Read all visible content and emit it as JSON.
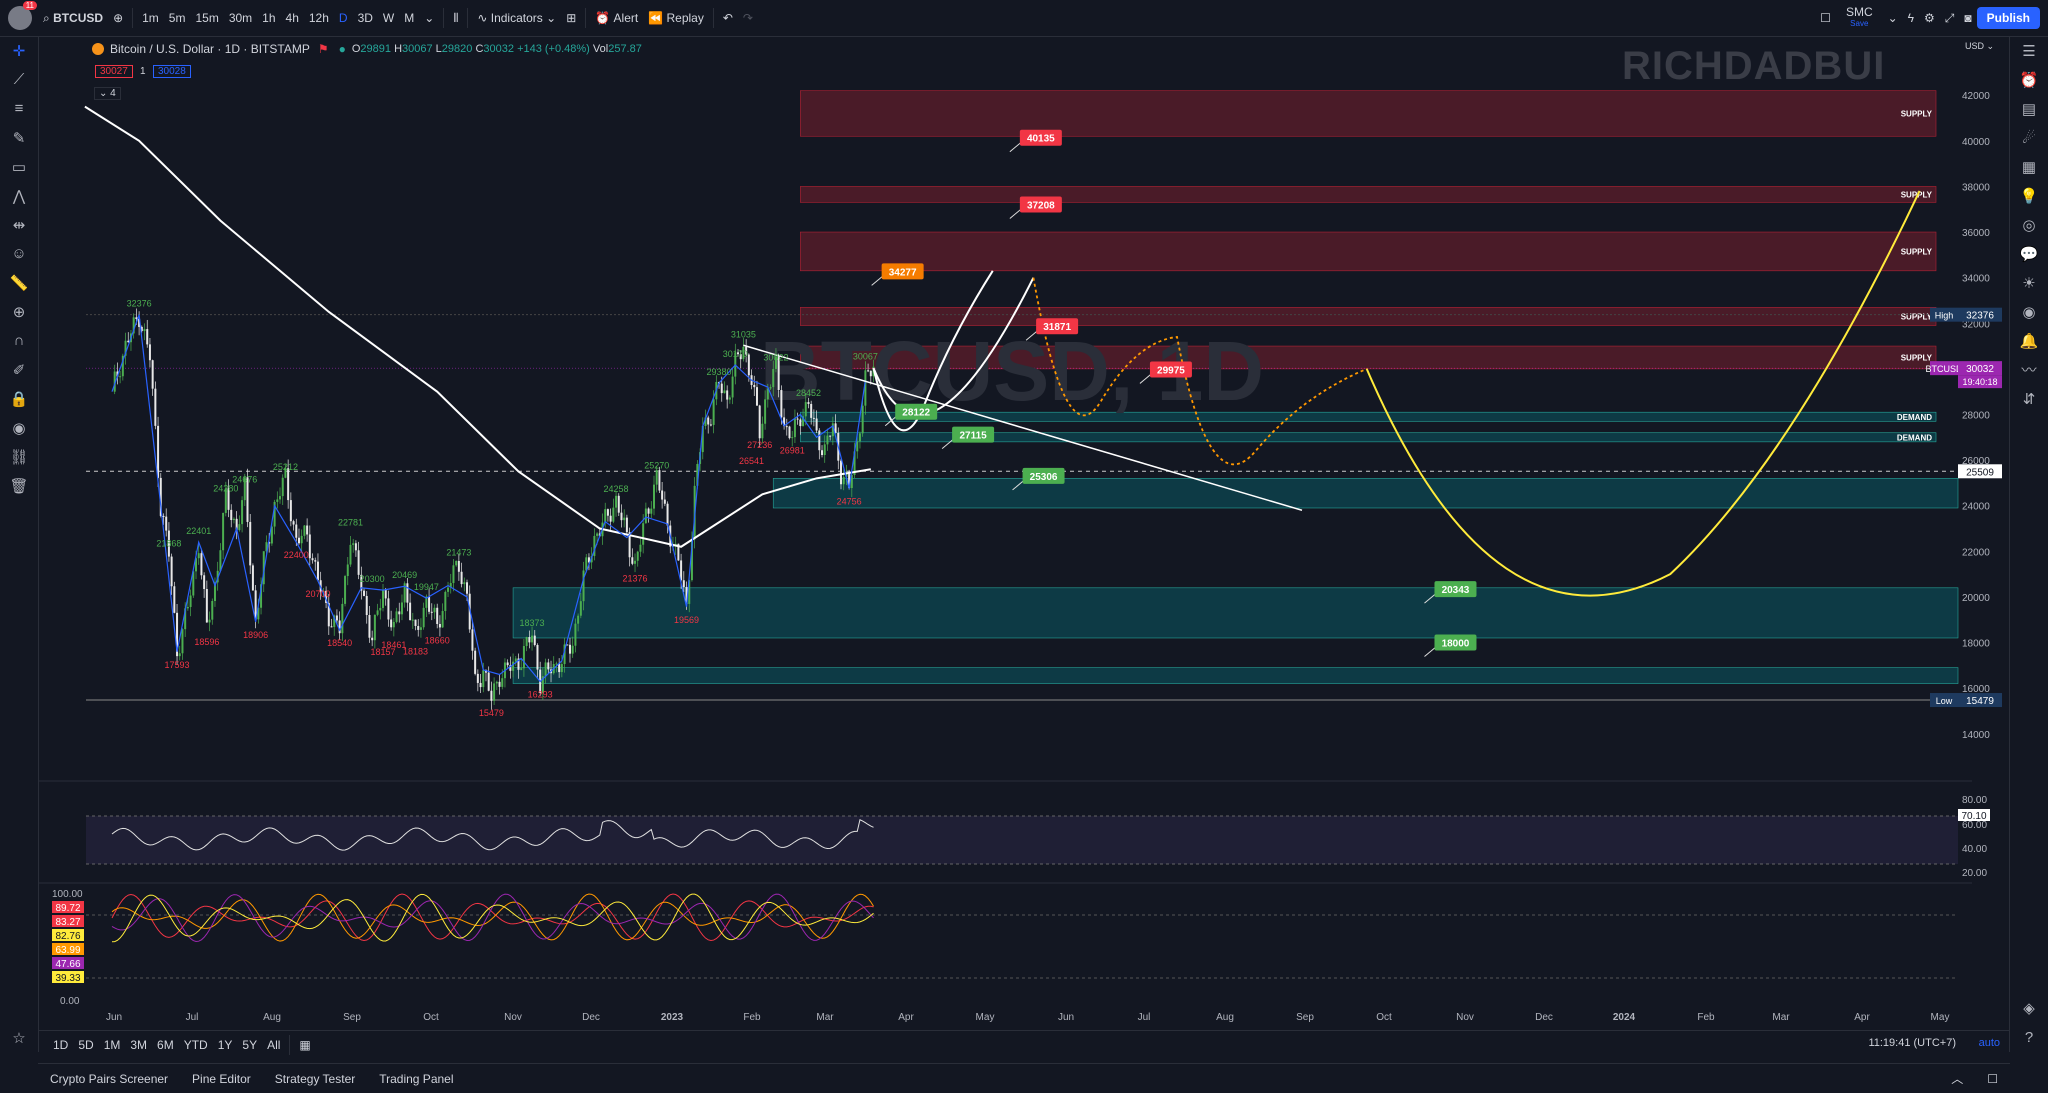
{
  "toolbar": {
    "avatar_badge": "11",
    "symbol": "BTCUSD",
    "intervals": [
      "1m",
      "5m",
      "15m",
      "30m",
      "1h",
      "4h",
      "12h",
      "D",
      "3D",
      "W",
      "M"
    ],
    "active_interval": "D",
    "indicators": "Indicators",
    "alert": "Alert",
    "replay": "Replay",
    "layout_name": "SMC",
    "layout_sub": "Save",
    "publish": "Publish"
  },
  "legend": {
    "title": "Bitcoin / U.S. Dollar · 1D · BITSTAMP",
    "o": "29891",
    "h": "30067",
    "l": "29820",
    "c": "30032",
    "change": "+143 (+0.48%)",
    "vol": "257.87",
    "bid": "30027",
    "spread": "1",
    "ask": "30028",
    "indicators_count": "4"
  },
  "watermark": "RICHDADBUI",
  "currency": "USD",
  "chart_data": {
    "type": "candlestick",
    "symbol_watermark": "BTCUSD, 1D",
    "y_axis": {
      "ticks": [
        42000,
        40000,
        38000,
        36000,
        34000,
        32000,
        30000,
        28000,
        26000,
        24000,
        22000,
        20000,
        18000,
        16000,
        14000
      ],
      "ylim": [
        13200,
        43500
      ]
    },
    "x_axis": {
      "ticks": [
        "Jun",
        "Jul",
        "Aug",
        "Sep",
        "Oct",
        "Nov",
        "Dec",
        "2023",
        "Feb",
        "Mar",
        "Apr",
        "May",
        "Jun",
        "Jul",
        "Aug",
        "Sep",
        "Oct",
        "Nov",
        "Dec",
        "2024",
        "Feb",
        "Mar",
        "Apr",
        "May"
      ]
    },
    "axis_labels": {
      "high_label": "High",
      "high": "32376",
      "last_symbol": "BTCUSD",
      "last": "30032",
      "countdown": "19:40:18",
      "crosshair": "25509",
      "low_label": "Low",
      "low": "15479"
    },
    "close_path": [
      [
        0,
        29000
      ],
      [
        5,
        31000
      ],
      [
        10,
        32376
      ],
      [
        14,
        30500
      ],
      [
        18,
        24000
      ],
      [
        21,
        21868
      ],
      [
        24,
        17593
      ],
      [
        28,
        19500
      ],
      [
        32,
        22401
      ],
      [
        35,
        18596
      ],
      [
        38,
        20500
      ],
      [
        42,
        24280
      ],
      [
        46,
        23000
      ],
      [
        49,
        24676
      ],
      [
        53,
        18906
      ],
      [
        56,
        21500
      ],
      [
        60,
        24000
      ],
      [
        64,
        25212
      ],
      [
        68,
        22400
      ],
      [
        72,
        22781
      ],
      [
        76,
        20700
      ],
      [
        80,
        19200
      ],
      [
        84,
        18540
      ],
      [
        88,
        22781
      ],
      [
        92,
        20400
      ],
      [
        96,
        18157
      ],
      [
        100,
        20300
      ],
      [
        104,
        18461
      ],
      [
        108,
        20469
      ],
      [
        112,
        18183
      ],
      [
        116,
        19947
      ],
      [
        120,
        18660
      ],
      [
        124,
        20500
      ],
      [
        128,
        21473
      ],
      [
        131,
        20000
      ],
      [
        134,
        16200
      ],
      [
        137,
        16800
      ],
      [
        140,
        15479
      ],
      [
        143,
        16600
      ],
      [
        147,
        16900
      ],
      [
        151,
        17300
      ],
      [
        155,
        18373
      ],
      [
        158,
        16293
      ],
      [
        162,
        16900
      ],
      [
        166,
        17200
      ],
      [
        170,
        18000
      ],
      [
        174,
        20800
      ],
      [
        178,
        22600
      ],
      [
        182,
        23300
      ],
      [
        186,
        24258
      ],
      [
        190,
        22600
      ],
      [
        193,
        21376
      ],
      [
        197,
        23500
      ],
      [
        201,
        25270
      ],
      [
        205,
        23200
      ],
      [
        209,
        21500
      ],
      [
        212,
        19569
      ],
      [
        215,
        24500
      ],
      [
        218,
        27500
      ],
      [
        221,
        28000
      ],
      [
        224,
        29380
      ],
      [
        227,
        28700
      ],
      [
        230,
        30170
      ],
      [
        233,
        31035
      ],
      [
        236,
        29500
      ],
      [
        239,
        27236
      ],
      [
        242,
        29200
      ],
      [
        245,
        30022
      ],
      [
        248,
        27500
      ],
      [
        251,
        26981
      ],
      [
        254,
        28000
      ],
      [
        257,
        28452
      ],
      [
        260,
        27000
      ],
      [
        263,
        26500
      ],
      [
        266,
        27500
      ],
      [
        269,
        25500
      ],
      [
        272,
        24756
      ],
      [
        275,
        26800
      ],
      [
        278,
        29500
      ],
      [
        281,
        30032
      ]
    ],
    "ma_line": [
      [
        -10,
        41500
      ],
      [
        10,
        40000
      ],
      [
        40,
        36500
      ],
      [
        80,
        32500
      ],
      [
        120,
        29000
      ],
      [
        150,
        25500
      ],
      [
        180,
        23000
      ],
      [
        210,
        22200
      ],
      [
        240,
        24500
      ],
      [
        260,
        25200
      ],
      [
        280,
        25600
      ]
    ],
    "swing_labels": [
      {
        "d": 10,
        "p": 32376,
        "t": "32376",
        "c": "high"
      },
      {
        "d": 24,
        "p": 17593,
        "t": "17593",
        "c": "low"
      },
      {
        "d": 21,
        "p": 21868,
        "t": "21868",
        "c": "high"
      },
      {
        "d": 32,
        "p": 22401,
        "t": "22401",
        "c": "high"
      },
      {
        "d": 35,
        "p": 18596,
        "t": "18596",
        "c": "low"
      },
      {
        "d": 42,
        "p": 24280,
        "t": "24280",
        "c": "high"
      },
      {
        "d": 49,
        "p": 24676,
        "t": "24676",
        "c": "high"
      },
      {
        "d": 53,
        "p": 18906,
        "t": "18906",
        "c": "low"
      },
      {
        "d": 64,
        "p": 25212,
        "t": "25212",
        "c": "high"
      },
      {
        "d": 68,
        "p": 22400,
        "t": "22400",
        "c": "low"
      },
      {
        "d": 76,
        "p": 20700,
        "t": "20700",
        "c": "low"
      },
      {
        "d": 88,
        "p": 22781,
        "t": "22781",
        "c": "high"
      },
      {
        "d": 84,
        "p": 18540,
        "t": "18540",
        "c": "low"
      },
      {
        "d": 96,
        "p": 20300,
        "t": "20300",
        "c": "high"
      },
      {
        "d": 100,
        "p": 18157,
        "t": "18157",
        "c": "low"
      },
      {
        "d": 104,
        "p": 18461,
        "t": "18461",
        "c": "low"
      },
      {
        "d": 108,
        "p": 20469,
        "t": "20469",
        "c": "high"
      },
      {
        "d": 112,
        "p": 18183,
        "t": "18183",
        "c": "low"
      },
      {
        "d": 116,
        "p": 19947,
        "t": "19947",
        "c": "high"
      },
      {
        "d": 120,
        "p": 18660,
        "t": "18660",
        "c": "low"
      },
      {
        "d": 128,
        "p": 21473,
        "t": "21473",
        "c": "high"
      },
      {
        "d": 140,
        "p": 15479,
        "t": "15479",
        "c": "low"
      },
      {
        "d": 155,
        "p": 18373,
        "t": "18373",
        "c": "high"
      },
      {
        "d": 158,
        "p": 16293,
        "t": "16293",
        "c": "low"
      },
      {
        "d": 186,
        "p": 24258,
        "t": "24258",
        "c": "high"
      },
      {
        "d": 193,
        "p": 21376,
        "t": "21376",
        "c": "low"
      },
      {
        "d": 201,
        "p": 25270,
        "t": "25270",
        "c": "high"
      },
      {
        "d": 212,
        "p": 19569,
        "t": "19569",
        "c": "low"
      },
      {
        "d": 224,
        "p": 29380,
        "t": "29380",
        "c": "high"
      },
      {
        "d": 230,
        "p": 30170,
        "t": "30170",
        "c": "high"
      },
      {
        "d": 233,
        "p": 31035,
        "t": "31035",
        "c": "high"
      },
      {
        "d": 239,
        "p": 27236,
        "t": "27236",
        "c": "low"
      },
      {
        "d": 236,
        "p": 26541,
        "t": "26541",
        "c": "low"
      },
      {
        "d": 245,
        "p": 30022,
        "t": "30022",
        "c": "high"
      },
      {
        "d": 251,
        "p": 26981,
        "t": "26981",
        "c": "low"
      },
      {
        "d": 257,
        "p": 28452,
        "t": "28452",
        "c": "high"
      },
      {
        "d": 272,
        "p": 24756,
        "t": "24756",
        "c": "low"
      },
      {
        "d": 278,
        "p": 30067,
        "t": "30067",
        "c": "high"
      }
    ],
    "zones": [
      {
        "kind": "supply",
        "label": "SUPPLY",
        "from": 40200,
        "to": 42200,
        "start": 254
      },
      {
        "kind": "supply",
        "label": "SUPPLY",
        "from": 37300,
        "to": 38000,
        "start": 254
      },
      {
        "kind": "supply",
        "label": "SUPPLY",
        "from": 34300,
        "to": 36000,
        "start": 254
      },
      {
        "kind": "supply",
        "label": "SUPPLY",
        "from": 31900,
        "to": 32700,
        "start": 254
      },
      {
        "kind": "supply",
        "label": "SUPPLY",
        "from": 30000,
        "to": 31000,
        "start": 254
      },
      {
        "kind": "demand",
        "label": "DEMAND",
        "from": 27700,
        "to": 28100,
        "start": 254
      },
      {
        "kind": "demand",
        "label": "DEMAND",
        "from": 26800,
        "to": 27200,
        "start": 254
      },
      {
        "kind": "demand",
        "label": "",
        "from": 23900,
        "to": 25200,
        "start": 244
      },
      {
        "kind": "demand",
        "label": "",
        "from": 18200,
        "to": 20400,
        "start": 148
      },
      {
        "kind": "demand",
        "label": "",
        "from": 16200,
        "to": 16900,
        "start": 148
      }
    ],
    "targets": [
      {
        "d": 335,
        "p": 40135,
        "t": "40135",
        "color": "#f23645"
      },
      {
        "d": 335,
        "p": 37208,
        "t": "37208",
        "color": "#f23645"
      },
      {
        "d": 284,
        "p": 34277,
        "t": "34277",
        "color": "#f57c00"
      },
      {
        "d": 341,
        "p": 31871,
        "t": "31871",
        "color": "#f23645"
      },
      {
        "d": 383,
        "p": 29975,
        "t": "29975",
        "color": "#f23645"
      },
      {
        "d": 289,
        "p": 28122,
        "t": "28122",
        "color": "#4caf50"
      },
      {
        "d": 310,
        "p": 27115,
        "t": "27115",
        "color": "#4caf50"
      },
      {
        "d": 336,
        "p": 25306,
        "t": "25306",
        "color": "#4caf50"
      },
      {
        "d": 488,
        "p": 20343,
        "t": "20343",
        "color": "#4caf50"
      },
      {
        "d": 488,
        "p": 18000,
        "t": "18000",
        "color": "#4caf50"
      }
    ],
    "rsi": {
      "ticks": [
        "80.00",
        "60.00",
        "40.00",
        "20.00"
      ],
      "last": "70.10"
    },
    "stoch": {
      "ticks": [
        "100.00",
        "0.00"
      ],
      "values": [
        "89.72",
        "83.27",
        "82.76",
        "63.99",
        "47.66",
        "39.33"
      ],
      "colors": [
        "#f23645",
        "#f23645",
        "#ffeb3b",
        "#ff9800",
        "#9c27b0",
        "#ffeb3b"
      ]
    }
  },
  "bottom": {
    "ranges": [
      "1D",
      "5D",
      "1M",
      "3M",
      "6M",
      "YTD",
      "1Y",
      "5Y",
      "All"
    ],
    "clock": "11:19:41 (UTC+7)",
    "auto": "auto",
    "panels": [
      "Crypto Pairs Screener",
      "Pine Editor",
      "Strategy Tester",
      "Trading Panel"
    ]
  }
}
